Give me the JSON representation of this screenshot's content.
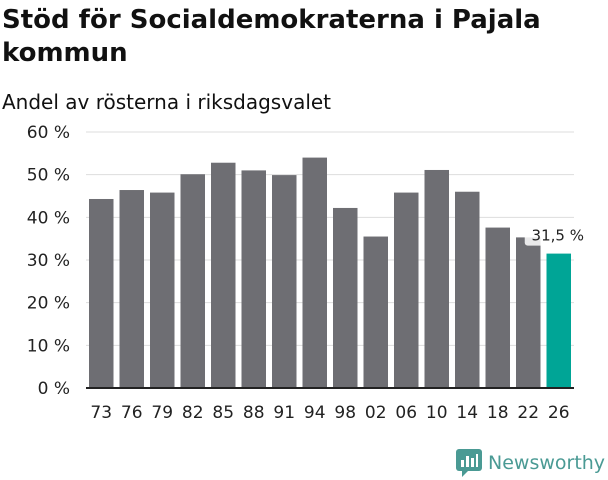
{
  "title": "Stöd för Socialdemokraterna i Pajala kommun",
  "subtitle": "Andel av rösterna i riksdagsvalet",
  "brand": "Newsworthy",
  "colors": {
    "bar": "#6e6e73",
    "highlight": "#00a596",
    "grid": "#dddddd",
    "axis": "#222222",
    "brand": "#4a9a94"
  },
  "chart_data": {
    "type": "bar",
    "categories": [
      "73",
      "76",
      "79",
      "82",
      "85",
      "88",
      "91",
      "94",
      "98",
      "02",
      "06",
      "10",
      "14",
      "18",
      "22",
      "26"
    ],
    "values": [
      44.3,
      46.4,
      45.8,
      50.1,
      52.8,
      51.0,
      49.9,
      54.0,
      42.2,
      35.5,
      45.8,
      51.1,
      46.0,
      37.6,
      35.3,
      31.5
    ],
    "highlight_index": 15,
    "highlight_label": "31,5 %",
    "ylim": [
      0,
      60
    ],
    "yticks": [
      {
        "value": 0,
        "label": "0 %"
      },
      {
        "value": 10,
        "label": "10 %"
      },
      {
        "value": 20,
        "label": "20 %"
      },
      {
        "value": 30,
        "label": "30 %"
      },
      {
        "value": 40,
        "label": "40 %"
      },
      {
        "value": 50,
        "label": "50 %"
      },
      {
        "value": 60,
        "label": "60 %"
      }
    ],
    "grid": true,
    "xlabel": "",
    "ylabel": ""
  }
}
